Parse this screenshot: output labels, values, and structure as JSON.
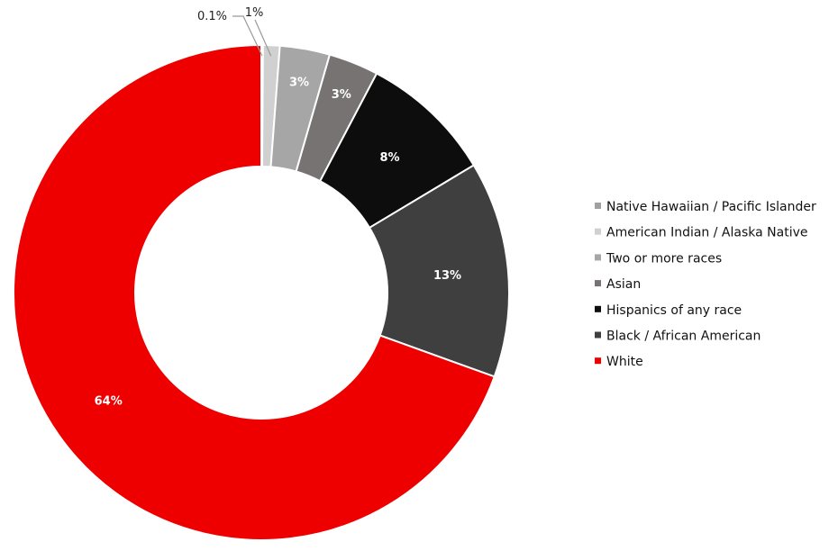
{
  "chart_data": {
    "type": "pie",
    "donut": true,
    "legend_position": "right",
    "slices": [
      {
        "name": "Native Hawaiian / Pacific Islander",
        "value": 0.1,
        "label": "0.1%",
        "color": "#a0a0a0"
      },
      {
        "name": "American Indian / Alaska Native",
        "value": 1,
        "label": "1%",
        "color": "#d0d0d0"
      },
      {
        "name": "Two or more races",
        "value": 3,
        "label": "3%",
        "color": "#a6a6a6"
      },
      {
        "name": "Asian",
        "value": 3,
        "label": "3%",
        "color": "#777372"
      },
      {
        "name": "Hispanics of any race",
        "value": 8,
        "label": "8%",
        "color": "#0d0d0d"
      },
      {
        "name": "Black / African American",
        "value": 13,
        "label": "13%",
        "color": "#3f3f3f"
      },
      {
        "name": "White",
        "value": 64,
        "label": "64%",
        "color": "#ef0000"
      }
    ]
  }
}
